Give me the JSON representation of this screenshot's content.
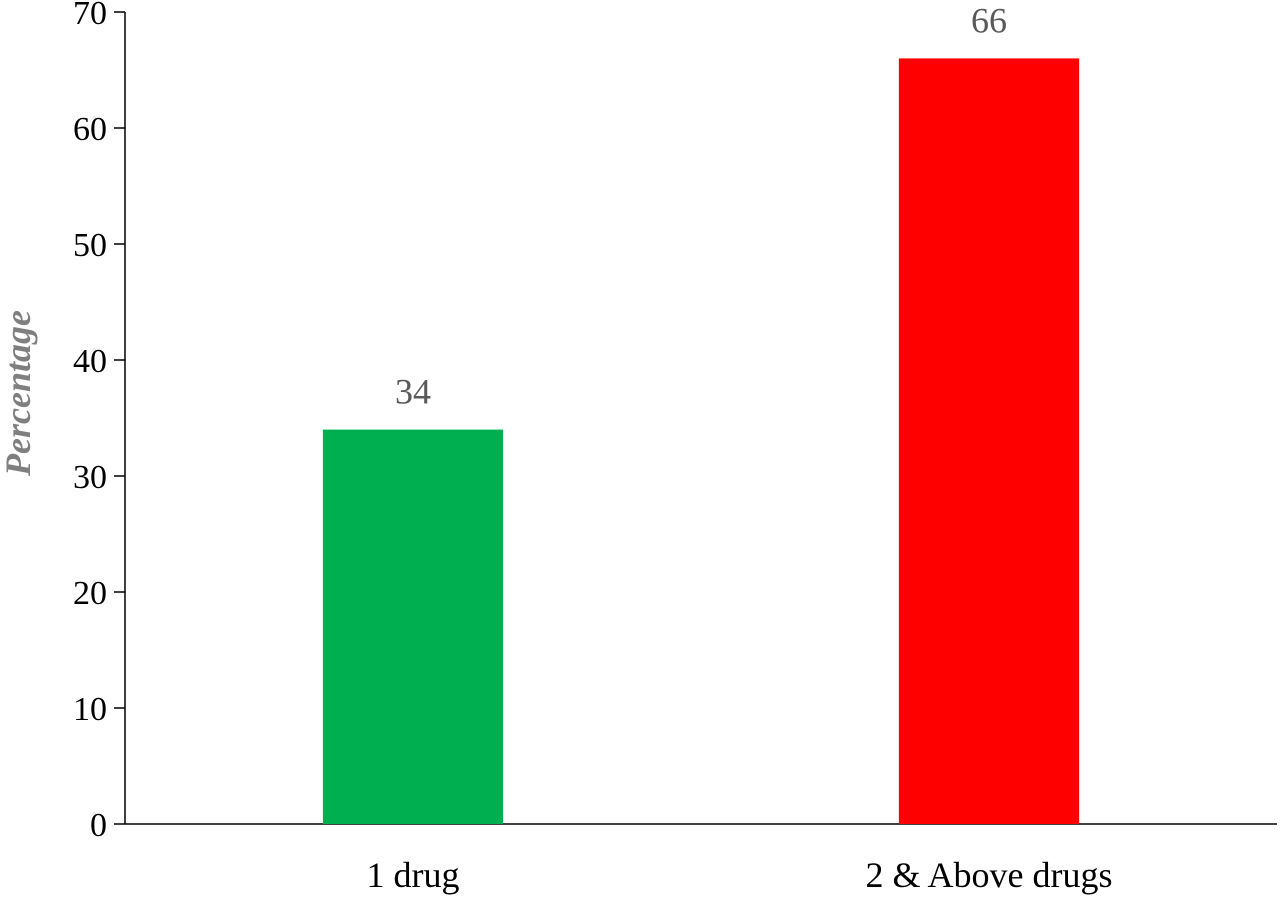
{
  "chart_data": {
    "type": "bar",
    "title": "",
    "xlabel": "",
    "ylabel": "Percentage",
    "categories": [
      "1 drug",
      "2 & Above drugs"
    ],
    "values": [
      34,
      66
    ],
    "data_labels": [
      "34",
      "66"
    ],
    "colors": [
      "#00b050",
      "#ff0000"
    ],
    "ylim": [
      0,
      70
    ],
    "yticks": [
      0,
      10,
      20,
      30,
      40,
      50,
      60,
      70
    ],
    "grid": false,
    "legend": "none"
  }
}
